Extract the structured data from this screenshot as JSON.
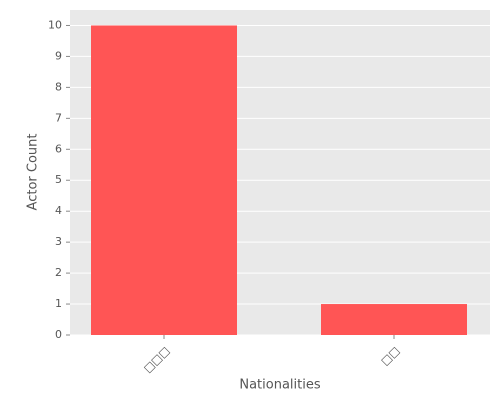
{
  "chart_data": {
    "type": "bar",
    "categories": [
      "□□□",
      "□□"
    ],
    "values": [
      10,
      1
    ],
    "color": "#ff5555",
    "x_label": "Nationalities",
    "y_label": "Actor Count",
    "ylim": [
      0,
      10.5
    ],
    "yticks": [
      0,
      1,
      2,
      3,
      4,
      5,
      6,
      7,
      8,
      9,
      10
    ],
    "grid": true
  }
}
